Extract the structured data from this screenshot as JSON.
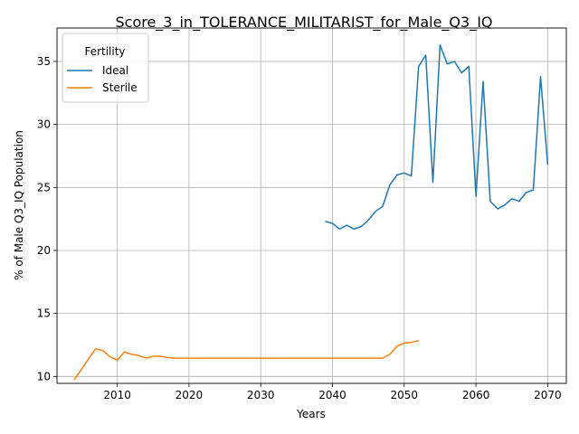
{
  "chart_data": {
    "type": "line",
    "title": "Score_3_in_TOLERANCE_MILITARIST_for_Male_Q3_IQ",
    "xlabel": "Years",
    "ylabel": "% of Male Q3_IQ Population",
    "xlim": [
      2001.6,
      2072.6
    ],
    "ylim": [
      9.45,
      37.65
    ],
    "xticks": [
      2010,
      2020,
      2030,
      2040,
      2050,
      2060,
      2070
    ],
    "yticks": [
      10,
      15,
      20,
      25,
      30,
      35
    ],
    "grid": true,
    "legend": {
      "title": "Fertility",
      "position": "top-left"
    },
    "series": [
      {
        "name": "Ideal",
        "color": "#1f77b4",
        "x": [
          2039,
          2040,
          2041,
          2042,
          2043,
          2044,
          2045,
          2046,
          2047,
          2048,
          2049,
          2050,
          2051,
          2052,
          2053,
          2054,
          2055,
          2056,
          2057,
          2058,
          2059,
          2060,
          2061,
          2062,
          2063,
          2064,
          2065,
          2066,
          2067,
          2068,
          2069,
          2070
        ],
        "y": [
          22.3,
          22.15,
          21.7,
          22.0,
          21.7,
          21.9,
          22.4,
          23.1,
          23.5,
          25.2,
          26.0,
          26.15,
          25.9,
          34.6,
          35.5,
          25.4,
          36.3,
          34.8,
          35.0,
          34.1,
          34.6,
          24.3,
          33.4,
          23.9,
          23.3,
          23.6,
          24.1,
          23.9,
          24.6,
          24.8,
          33.8,
          26.8
        ]
      },
      {
        "name": "Sterile",
        "color": "#ff7f0e",
        "x": [
          2004,
          2005,
          2006,
          2007,
          2008,
          2009,
          2010,
          2011,
          2012,
          2013,
          2014,
          2015,
          2016,
          2017,
          2018,
          2019,
          2020,
          2025,
          2030,
          2035,
          2040,
          2045,
          2047,
          2048,
          2049,
          2050,
          2051,
          2052
        ],
        "y": [
          9.75,
          10.55,
          11.4,
          12.2,
          12.05,
          11.55,
          11.3,
          11.95,
          11.75,
          11.65,
          11.45,
          11.6,
          11.6,
          11.5,
          11.45,
          11.45,
          11.45,
          11.45,
          11.45,
          11.45,
          11.45,
          11.45,
          11.45,
          11.75,
          12.4,
          12.65,
          12.7,
          12.85
        ]
      }
    ]
  }
}
